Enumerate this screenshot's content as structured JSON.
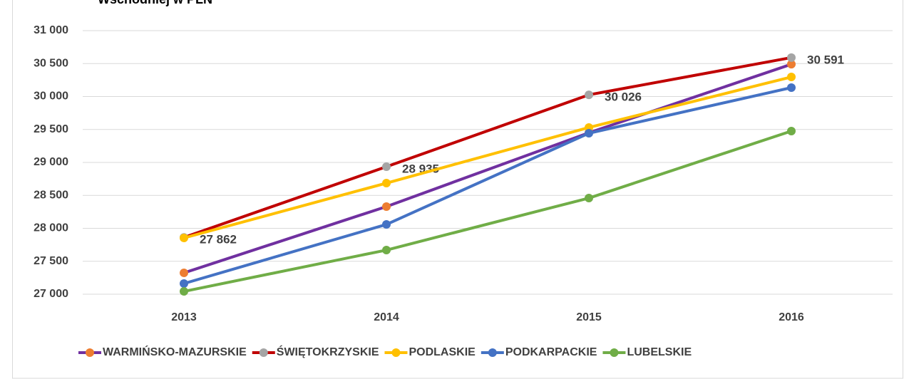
{
  "chart_data": {
    "type": "line",
    "title": "Wschodniej w PLN",
    "categories": [
      "2013",
      "2014",
      "2015",
      "2016"
    ],
    "ylim": [
      27000,
      31000
    ],
    "yticks": [
      {
        "value": 27000,
        "label": "27 000"
      },
      {
        "value": 27500,
        "label": "27 500"
      },
      {
        "value": 28000,
        "label": "28 000"
      },
      {
        "value": 28500,
        "label": "28 500"
      },
      {
        "value": 29000,
        "label": "29 000"
      },
      {
        "value": 29500,
        "label": "29 500"
      },
      {
        "value": 30000,
        "label": "30 000"
      },
      {
        "value": 30500,
        "label": "30 500"
      },
      {
        "value": 31000,
        "label": "31 000"
      }
    ],
    "grid": true,
    "legend": "bottom",
    "series": [
      {
        "name": "WARMIŃSKO-MAZURSKIE",
        "color": "#7030a0",
        "marker_color": "#ed7d31",
        "values": [
          27324,
          28330,
          29450,
          30490
        ]
      },
      {
        "name": "ŚWIĘTOKRZYSKIE",
        "color": "#c00000",
        "marker_color": "#a5a5a5",
        "values": [
          27862,
          28935,
          30026,
          30591
        ],
        "value_labels": [
          "27 862",
          "28 935",
          "30 026",
          "30 591"
        ]
      },
      {
        "name": "PODLASKIE",
        "color": "#ffc000",
        "marker_color": "#ffc000",
        "values": [
          27854,
          28686,
          29530,
          30297
        ]
      },
      {
        "name": "PODKARPACKIE",
        "color": "#4472c4",
        "marker_color": "#4472c4",
        "values": [
          27162,
          28059,
          29443,
          30135
        ]
      },
      {
        "name": "LUBELSKIE",
        "color": "#70ad47",
        "marker_color": "#70ad47",
        "values": [
          27043,
          27670,
          28459,
          29476
        ]
      }
    ]
  }
}
